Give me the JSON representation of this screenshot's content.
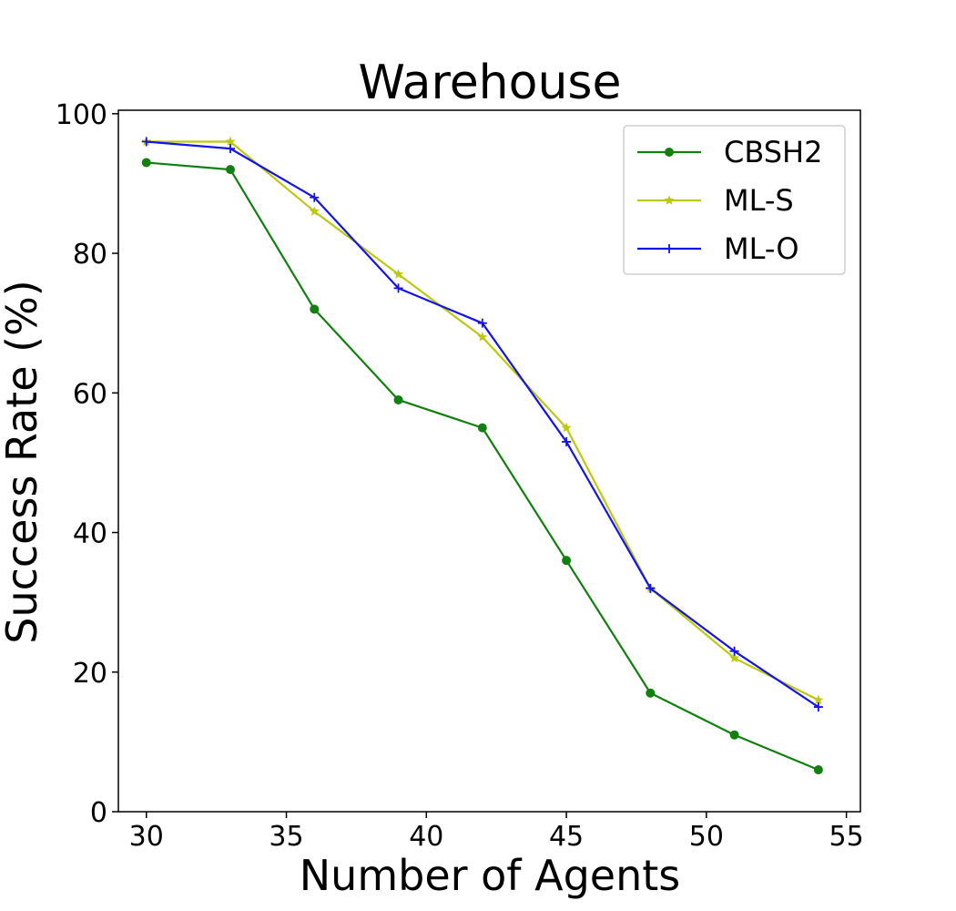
{
  "chart_data": {
    "type": "line",
    "title": "Warehouse",
    "xlabel": "Number of Agents",
    "ylabel": "Success Rate (%)",
    "xlim": [
      29,
      55.5
    ],
    "ylim": [
      0,
      100.5
    ],
    "xticks": [
      30,
      35,
      40,
      45,
      50,
      55
    ],
    "yticks": [
      0,
      20,
      40,
      60,
      80,
      100
    ],
    "grid": false,
    "legend_position": "upper right",
    "x": [
      30,
      33,
      36,
      39,
      42,
      45,
      48,
      51,
      54
    ],
    "series": [
      {
        "name": "CBSH2",
        "color": "#118011",
        "marker": "circle",
        "values": [
          93,
          92,
          72,
          59,
          55,
          36,
          17,
          11,
          6
        ]
      },
      {
        "name": "ML-S",
        "color": "#bcc90e",
        "marker": "star",
        "values": [
          96,
          96,
          86,
          77,
          68,
          55,
          32,
          22,
          16
        ]
      },
      {
        "name": "ML-O",
        "color": "#1414e6",
        "marker": "plus",
        "values": [
          96,
          95,
          88,
          75,
          70,
          53,
          32,
          23,
          15
        ]
      }
    ]
  }
}
